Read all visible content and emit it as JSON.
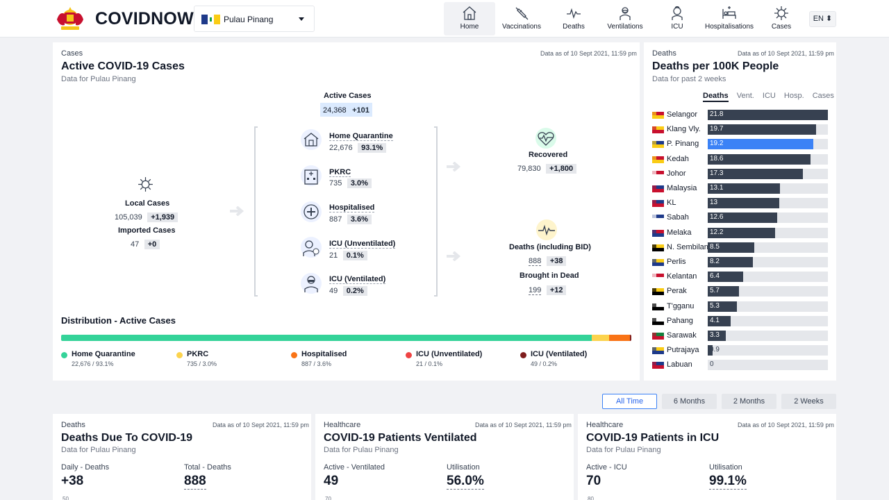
{
  "header": {
    "brand": "COVIDNOW",
    "state": "Pulau Pinang",
    "nav": [
      {
        "label": "Home",
        "icon": "home-icon"
      },
      {
        "label": "Vaccinations",
        "icon": "syringe-icon"
      },
      {
        "label": "Deaths",
        "icon": "pulse-icon"
      },
      {
        "label": "Ventilations",
        "icon": "ventilator-icon"
      },
      {
        "label": "ICU",
        "icon": "icu-icon"
      },
      {
        "label": "Hospitalisations",
        "icon": "hospital-bed-icon"
      },
      {
        "label": "Cases",
        "icon": "virus-icon"
      }
    ],
    "language": "EN ⬍"
  },
  "active": {
    "category": "Cases",
    "asof": "Data as of 10 Sept 2021, 11:59 pm",
    "title": "Active COVID-19 Cases",
    "subtitle": "Data for Pulau Pinang",
    "local": {
      "label": "Local Cases",
      "value": "105,039",
      "delta": "+1,939"
    },
    "imported": {
      "label": "Imported Cases",
      "value": "47",
      "delta": "+0"
    },
    "active_total": {
      "label": "Active Cases",
      "value": "24,368",
      "delta": "+101"
    },
    "items": [
      {
        "label": "Home Quarantine",
        "value": "22,676",
        "pct": "93.1%"
      },
      {
        "label": "PKRC",
        "value": "735",
        "pct": "3.0%"
      },
      {
        "label": "Hospitalised",
        "value": "887",
        "pct": "3.6%"
      },
      {
        "label": "ICU (Unventilated)",
        "value": "21",
        "pct": "0.1%"
      },
      {
        "label": "ICU (Ventilated)",
        "value": "49",
        "pct": "0.2%"
      }
    ],
    "recovered": {
      "label": "Recovered",
      "value": "79,830",
      "delta": "+1,800"
    },
    "deaths": {
      "label": "Deaths (including BID)",
      "value": "888",
      "delta": "+38"
    },
    "bid": {
      "label": "Brought in Dead",
      "value": "199",
      "delta": "+12"
    },
    "distribution_title": "Distribution - Active Cases",
    "distribution": [
      {
        "label": "Home Quarantine",
        "text": "22,676 / 93.1%",
        "pct": 93.1,
        "color": "#34d399"
      },
      {
        "label": "PKRC",
        "text": "735 / 3.0%",
        "pct": 3.0,
        "color": "#fcd34d"
      },
      {
        "label": "Hospitalised",
        "text": "887 / 3.6%",
        "pct": 3.6,
        "color": "#f97316"
      },
      {
        "label": "ICU (Unventilated)",
        "text": "21 / 0.1%",
        "pct": 0.1,
        "color": "#ef4444"
      },
      {
        "label": "ICU (Ventilated)",
        "text": "49 / 0.2%",
        "pct": 0.2,
        "color": "#7f1d1d"
      }
    ]
  },
  "ranking": {
    "category": "Deaths",
    "asof": "Data as of 10 Sept 2021, 11:59 pm",
    "title": "Deaths per 100K People",
    "subtitle": "Data for past 2 weeks",
    "tabs": [
      "Deaths",
      "Vent.",
      "ICU",
      "Hosp.",
      "Cases"
    ],
    "max": 21.8,
    "rows": [
      {
        "name": "Selangor",
        "value": 21.8
      },
      {
        "name": "Klang Vly.",
        "value": 19.7
      },
      {
        "name": "P. Pinang",
        "value": 19.2,
        "highlight": true
      },
      {
        "name": "Kedah",
        "value": 18.6
      },
      {
        "name": "Johor",
        "value": 17.3
      },
      {
        "name": "Malaysia",
        "value": 13.1
      },
      {
        "name": "KL",
        "value": 13.0
      },
      {
        "name": "Sabah",
        "value": 12.6
      },
      {
        "name": "Melaka",
        "value": 12.2
      },
      {
        "name": "N. Sembilan",
        "value": 8.5
      },
      {
        "name": "Perlis",
        "value": 8.2
      },
      {
        "name": "Kelantan",
        "value": 6.4
      },
      {
        "name": "Perak",
        "value": 5.7
      },
      {
        "name": "T'gganu",
        "value": 5.3
      },
      {
        "name": "Pahang",
        "value": 4.1
      },
      {
        "name": "Sarawak",
        "value": 3.3
      },
      {
        "name": "Putrajaya",
        "value": 0.9
      },
      {
        "name": "Labuan",
        "value": 0
      }
    ]
  },
  "periods": [
    "All Time",
    "6 Months",
    "2 Months",
    "2 Weeks"
  ],
  "bottom": [
    {
      "category": "Deaths",
      "asof": "Data as of 10 Sept 2021, 11:59 pm",
      "title": "Deaths Due To COVID-19",
      "subtitle": "Data for Pulau Pinang",
      "left_label": "Daily - Deaths",
      "left_value": "+38",
      "right_label": "Total - Deaths",
      "right_value": "888",
      "axis_top": "50"
    },
    {
      "category": "Healthcare",
      "asof": "Data as of 10 Sept 2021, 11:59 pm",
      "title": "COVID-19 Patients Ventilated",
      "subtitle": "Data for Pulau Pinang",
      "left_label": "Active - Ventilated",
      "left_value": "49",
      "right_label": "Utilisation",
      "right_value": "56.0%",
      "axis_top": "70"
    },
    {
      "category": "Healthcare",
      "asof": "Data as of 10 Sept 2021, 11:59 pm",
      "title": "COVID-19 Patients in ICU",
      "subtitle": "Data for Pulau Pinang",
      "left_label": "Active - ICU",
      "left_value": "70",
      "right_label": "Utilisation",
      "right_value": "99.1%",
      "axis_top": "80"
    }
  ]
}
